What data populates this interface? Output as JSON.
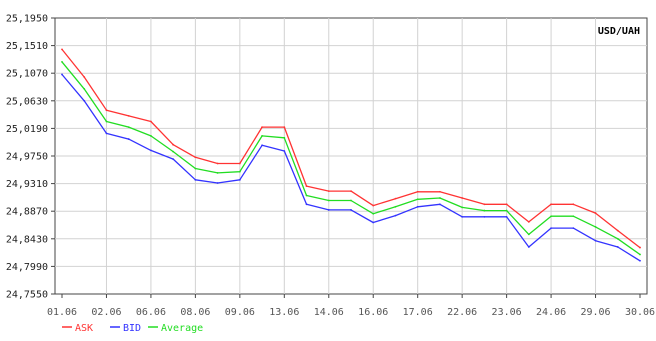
{
  "chart_data": {
    "type": "line",
    "title": "",
    "xlabel": "",
    "ylabel": "",
    "currency_pair": "USD/UAH",
    "x_tick_labels": [
      "01.06",
      "02.06",
      "06.06",
      "08.06",
      "09.06",
      "13.06",
      "14.06",
      "16.06",
      "17.06",
      "22.06",
      "23.06",
      "24.06",
      "29.06",
      "30.06"
    ],
    "x": [
      "01.06",
      "01.06b",
      "02.06",
      "02.06b",
      "06.06",
      "06.06b",
      "08.06",
      "08.06b",
      "09.06",
      "09.06b",
      "13.06",
      "13.06b",
      "14.06",
      "14.06b",
      "16.06",
      "16.06b",
      "17.06",
      "17.06b",
      "22.06",
      "22.06b",
      "23.06",
      "23.06b",
      "24.06",
      "24.06b",
      "29.06",
      "29.06b",
      "30.06"
    ],
    "ylim": [
      24.755,
      25.195
    ],
    "y_ticks": [
      "25,1950",
      "25,1510",
      "25,1070",
      "25,0630",
      "25,0190",
      "24,9750",
      "24,9310",
      "24,8870",
      "24,8430",
      "24,7990",
      "24,7550"
    ],
    "grid": true,
    "legend": "bottom-left",
    "series": [
      {
        "name": "ASK",
        "color": "#ff3333",
        "values": [
          25.145,
          25.101,
          25.048,
          25.039,
          25.03,
          24.993,
          24.973,
          24.963,
          24.963,
          25.021,
          25.021,
          24.927,
          24.919,
          24.919,
          24.896,
          24.907,
          24.918,
          24.918,
          24.908,
          24.898,
          24.898,
          24.87,
          24.898,
          24.898,
          24.884,
          24.856,
          24.829
        ]
      },
      {
        "name": "BID",
        "color": "#3333ff",
        "values": [
          25.105,
          25.063,
          25.011,
          25.002,
          24.984,
          24.97,
          24.937,
          24.932,
          24.937,
          24.992,
          24.983,
          24.898,
          24.889,
          24.889,
          24.869,
          24.88,
          24.894,
          24.898,
          24.878,
          24.878,
          24.878,
          24.83,
          24.86,
          24.86,
          24.84,
          24.83,
          24.808
        ]
      },
      {
        "name": "Average",
        "color": "#22dd22",
        "values": [
          25.125,
          25.082,
          25.03,
          25.021,
          25.007,
          24.982,
          24.955,
          24.948,
          24.95,
          25.007,
          25.004,
          24.912,
          24.904,
          24.904,
          24.883,
          24.894,
          24.906,
          24.908,
          24.893,
          24.888,
          24.888,
          24.85,
          24.879,
          24.879,
          24.862,
          24.843,
          24.818
        ]
      }
    ]
  }
}
